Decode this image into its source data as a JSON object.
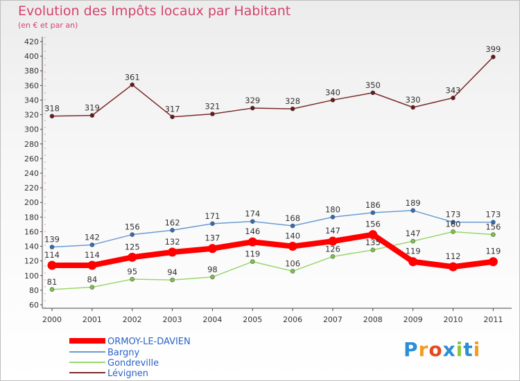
{
  "title": "Evolution des Impôts locaux par Habitant",
  "subtitle": "(en € et par an)",
  "logo": "Proxiti",
  "chart_data": {
    "type": "line",
    "title": "Evolution des Impôts locaux par Habitant",
    "subtitle": "(en € et par an)",
    "x": [
      "2000",
      "2001",
      "2002",
      "2003",
      "2004",
      "2005",
      "2006",
      "2007",
      "2008",
      "2009",
      "2010",
      "2011"
    ],
    "ylim": [
      60,
      420
    ],
    "yticks": [
      60,
      80,
      100,
      120,
      140,
      160,
      180,
      200,
      220,
      240,
      260,
      280,
      300,
      320,
      340,
      360,
      380,
      400,
      420
    ],
    "grid": false,
    "legend_position": "bottom-left",
    "series": [
      {
        "name": "ORMOY-LE-DAVIEN",
        "color": "#ff0000",
        "marker": "#ff0000",
        "width": 8,
        "values": [
          114,
          114,
          125,
          132,
          137,
          146,
          140,
          147,
          156,
          119,
          112,
          119
        ],
        "show_labels": true
      },
      {
        "name": "Bargny",
        "color": "#6b9bd0",
        "marker": "#2e6eb8",
        "width": 1.5,
        "values": [
          139,
          142,
          156,
          162,
          171,
          174,
          168,
          180,
          186,
          189,
          173,
          173
        ],
        "show_labels": true
      },
      {
        "name": "Gondreville",
        "color": "#9ad66a",
        "marker": "#7cc443",
        "width": 1.5,
        "values": [
          81,
          84,
          95,
          94,
          98,
          119,
          106,
          126,
          135,
          147,
          160,
          156
        ],
        "show_labels": true
      },
      {
        "name": "Lévignen",
        "color": "#7a2a2a",
        "marker": "#6a1616",
        "width": 1.5,
        "values": [
          318,
          319,
          361,
          317,
          321,
          329,
          328,
          340,
          350,
          330,
          343,
          399
        ],
        "show_labels": true
      }
    ]
  }
}
